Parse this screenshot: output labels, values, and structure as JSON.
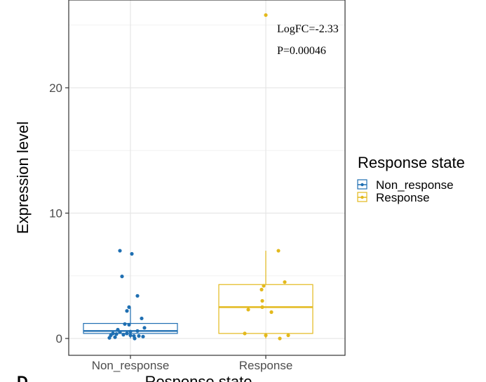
{
  "chart_data": {
    "type": "boxplot",
    "xlabel": "Response state",
    "ylabel": "Expression level",
    "ylim": [
      -1.2,
      27
    ],
    "yticks": [
      0,
      10,
      20
    ],
    "categories": [
      "Non_response",
      "Response"
    ],
    "grid": true,
    "legend": {
      "title": "Response state",
      "placement": "right",
      "entries": [
        "Non_response",
        "Response"
      ]
    },
    "annotations": [
      "LogFC=-2.33",
      "P=0.00046"
    ],
    "panel_label": "D",
    "series": [
      {
        "name": "Non_response",
        "color": "#1f6fb2",
        "box": {
          "q1": 0.4,
          "median": 0.6,
          "q3": 1.2,
          "whisker_low": 0.0,
          "whisker_high": 2.5
        },
        "points": [
          [
            -0.15,
            7.0
          ],
          [
            0.02,
            6.75
          ],
          [
            -0.12,
            4.95
          ],
          [
            0.1,
            3.4
          ],
          [
            -0.02,
            2.5
          ],
          [
            -0.05,
            2.2
          ],
          [
            -0.08,
            1.15
          ],
          [
            -0.02,
            1.1
          ],
          [
            0.16,
            1.6
          ],
          [
            0.2,
            0.85
          ],
          [
            0.1,
            0.6
          ],
          [
            -0.18,
            0.7
          ],
          [
            -0.25,
            0.4
          ],
          [
            -0.28,
            0.25
          ],
          [
            -0.2,
            0.35
          ],
          [
            -0.1,
            0.3
          ],
          [
            0.0,
            0.25
          ],
          [
            0.05,
            0.2
          ],
          [
            0.12,
            0.2
          ],
          [
            0.18,
            0.15
          ],
          [
            -0.3,
            0.05
          ],
          [
            -0.22,
            0.1
          ],
          [
            -0.15,
            0.5
          ],
          [
            0.06,
            0.0
          ],
          [
            0.0,
            0.55
          ],
          [
            -0.05,
            0.4
          ]
        ]
      },
      {
        "name": "Response",
        "color": "#e3b91d",
        "box": {
          "q1": 0.4,
          "median": 2.5,
          "q3": 4.3,
          "whisker_low": 0.0,
          "whisker_high": 7.0
        },
        "points": [
          [
            0.0,
            25.8
          ],
          [
            0.18,
            7.0
          ],
          [
            0.27,
            4.5
          ],
          [
            -0.03,
            4.2
          ],
          [
            -0.06,
            3.9
          ],
          [
            -0.05,
            3.0
          ],
          [
            -0.05,
            2.5
          ],
          [
            -0.25,
            2.3
          ],
          [
            0.08,
            2.1
          ],
          [
            -0.3,
            0.4
          ],
          [
            0.0,
            0.25
          ],
          [
            0.32,
            0.25
          ],
          [
            0.2,
            0.0
          ]
        ]
      }
    ]
  }
}
